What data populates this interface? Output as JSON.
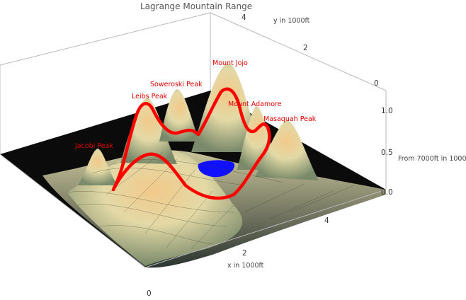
{
  "chart_data": {
    "type": "surface3d",
    "title": "Lagrange Mountain Range",
    "xlabel": "x in 1000ft",
    "ylabel": "y in 1000ft",
    "zlabel": "From 7000ft in 1000ft",
    "x_ticks": [
      "0",
      "2",
      "4"
    ],
    "y_ticks": [
      "0",
      "2",
      "4"
    ],
    "z_ticks": [
      "0.0",
      "0.5",
      "1.0"
    ],
    "xlim": [
      0,
      5.6
    ],
    "ylim": [
      0,
      5
    ],
    "zlim": [
      0,
      1.15
    ],
    "peaks": [
      {
        "name": "Jacobi Peak",
        "x": 1.8,
        "y": 3.2,
        "height": 0.45
      },
      {
        "name": "Leibs Peak",
        "x": 3.0,
        "y": 2.8,
        "height": 1.0
      },
      {
        "name": "Soweroski Peak",
        "x": 3.6,
        "y": 2.7,
        "height": 0.95
      },
      {
        "name": "Mount Jojo",
        "x": 4.6,
        "y": 2.5,
        "height": 1.15
      },
      {
        "name": "Mount Adamore",
        "x": 4.7,
        "y": 1.7,
        "height": 0.85
      },
      {
        "name": "Masaquah Peak",
        "x": 4.8,
        "y": 1.0,
        "height": 0.75
      }
    ],
    "lake_color": "#1010ff",
    "path_color": "#ff0000"
  }
}
